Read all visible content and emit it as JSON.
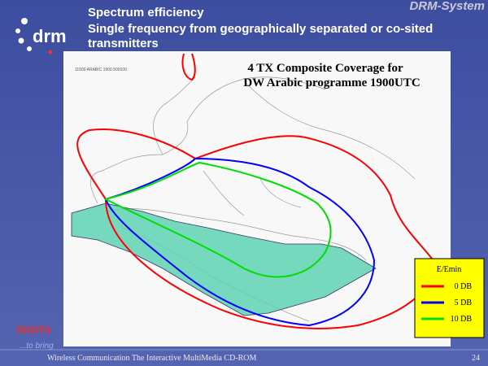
{
  "header": {
    "logo": "drm",
    "brand": "DRM-System",
    "title_lines": [
      "Spectrum efficiency",
      "Single frequency from geographically separated or co-sited",
      "transmitters"
    ]
  },
  "map": {
    "title_lines": [
      "4 TX Composite Coverage for",
      "DW Arabic programme 1900UTC"
    ],
    "label": "11500 ARABIC 1900 500100"
  },
  "legend": {
    "title": "E/Emin",
    "items": [
      {
        "label": "0 DB",
        "color": "#ff0000"
      },
      {
        "label": "5 DB",
        "color": "#0000ff"
      },
      {
        "label": "10 DB",
        "color": "#00dd00"
      }
    ]
  },
  "background_text": [
    "DIGITA",
    "...to bring"
  ],
  "footer": {
    "text": "Wireless Communication The Interactive MultiMedia CD-ROM",
    "page": "24"
  }
}
